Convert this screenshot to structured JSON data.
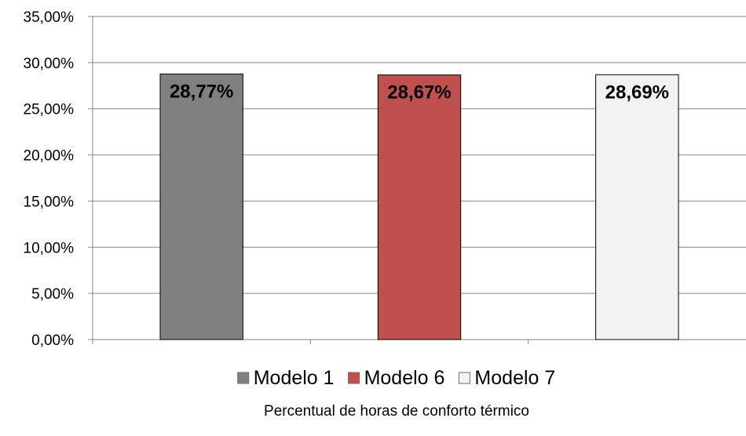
{
  "chart_data": {
    "type": "bar",
    "categories": [
      "Modelo 1",
      "Modelo 6",
      "Modelo 7"
    ],
    "series": [
      {
        "name": "Modelo 1",
        "value": 28.77,
        "label": "28,77%",
        "color": "#808080"
      },
      {
        "name": "Modelo 6",
        "value": 28.67,
        "label": "28,67%",
        "color": "#c0504d"
      },
      {
        "name": "Modelo 7",
        "value": 28.69,
        "label": "28,69%",
        "color": "#f2f2f2"
      }
    ],
    "y_ticks": [
      {
        "value": 0,
        "label": "0,00%"
      },
      {
        "value": 5,
        "label": "5,00%"
      },
      {
        "value": 10,
        "label": "10,00%"
      },
      {
        "value": 15,
        "label": "15,00%"
      },
      {
        "value": 20,
        "label": "20,00%"
      },
      {
        "value": 25,
        "label": "25,00%"
      },
      {
        "value": 30,
        "label": "30,00%"
      },
      {
        "value": 35,
        "label": "35,00%"
      }
    ],
    "ylim": [
      0,
      35
    ],
    "xlabel": "Percentual de horas de conforto térmico",
    "ylabel": "",
    "title": "",
    "grid": true,
    "legend_position": "bottom",
    "gridline_color": "#868686",
    "axis_color": "#868686",
    "bar_outline_color": "#000000"
  }
}
